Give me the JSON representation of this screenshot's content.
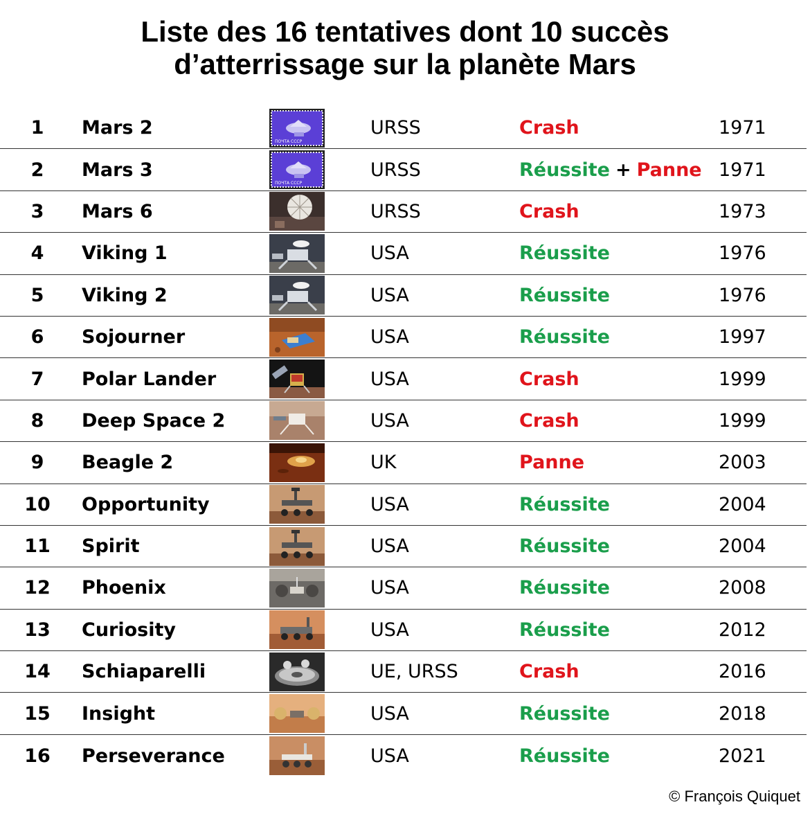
{
  "title_line1": "Liste des 16 tentatives dont 10 succès",
  "title_line2": "d’atterrissage sur la planète Mars",
  "rows": [
    {
      "num": "1",
      "name": "Mars 2",
      "country": "URSS",
      "result": [
        {
          "text": "Crash",
          "status": "fail"
        }
      ],
      "year": "1971",
      "thumb": "stamp"
    },
    {
      "num": "2",
      "name": "Mars 3",
      "country": "URSS",
      "result": [
        {
          "text": "Réussite",
          "status": "ok"
        },
        {
          "text": "+",
          "status": "sep"
        },
        {
          "text": "Panne",
          "status": "fail"
        }
      ],
      "year": "1971",
      "thumb": "stamp"
    },
    {
      "num": "3",
      "name": "Mars 6",
      "country": "URSS",
      "result": [
        {
          "text": "Crash",
          "status": "fail"
        }
      ],
      "year": "1973",
      "thumb": "parachute"
    },
    {
      "num": "4",
      "name": "Viking 1",
      "country": "USA",
      "result": [
        {
          "text": "Réussite",
          "status": "ok"
        }
      ],
      "year": "1976",
      "thumb": "viking"
    },
    {
      "num": "5",
      "name": "Viking 2",
      "country": "USA",
      "result": [
        {
          "text": "Réussite",
          "status": "ok"
        }
      ],
      "year": "1976",
      "thumb": "viking"
    },
    {
      "num": "6",
      "name": "Sojourner",
      "country": "USA",
      "result": [
        {
          "text": "Réussite",
          "status": "ok"
        }
      ],
      "year": "1997",
      "thumb": "sojourner"
    },
    {
      "num": "7",
      "name": "Polar Lander",
      "country": "USA",
      "result": [
        {
          "text": "Crash",
          "status": "fail"
        }
      ],
      "year": "1999",
      "thumb": "polar"
    },
    {
      "num": "8",
      "name": "Deep Space 2",
      "country": "USA",
      "result": [
        {
          "text": "Crash",
          "status": "fail"
        }
      ],
      "year": "1999",
      "thumb": "deepspace"
    },
    {
      "num": "9",
      "name": "Beagle 2",
      "country": "UK",
      "result": [
        {
          "text": "Panne",
          "status": "fail"
        }
      ],
      "year": "2003",
      "thumb": "beagle"
    },
    {
      "num": "10",
      "name": "Opportunity",
      "country": "USA",
      "result": [
        {
          "text": "Réussite",
          "status": "ok"
        }
      ],
      "year": "2004",
      "thumb": "rover"
    },
    {
      "num": "11",
      "name": "Spirit",
      "country": "USA",
      "result": [
        {
          "text": "Réussite",
          "status": "ok"
        }
      ],
      "year": "2004",
      "thumb": "rover"
    },
    {
      "num": "12",
      "name": "Phoenix",
      "country": "USA",
      "result": [
        {
          "text": "Réussite",
          "status": "ok"
        }
      ],
      "year": "2008",
      "thumb": "phoenix"
    },
    {
      "num": "13",
      "name": "Curiosity",
      "country": "USA",
      "result": [
        {
          "text": "Réussite",
          "status": "ok"
        }
      ],
      "year": "2012",
      "thumb": "curiosity"
    },
    {
      "num": "14",
      "name": "Schiaparelli",
      "country": "UE, URSS",
      "result": [
        {
          "text": "Crash",
          "status": "fail"
        }
      ],
      "year": "2016",
      "thumb": "schiaparelli"
    },
    {
      "num": "15",
      "name": "Insight",
      "country": "USA",
      "result": [
        {
          "text": "Réussite",
          "status": "ok"
        }
      ],
      "year": "2018",
      "thumb": "insight"
    },
    {
      "num": "16",
      "name": "Perseverance",
      "country": "USA",
      "result": [
        {
          "text": "Réussite",
          "status": "ok"
        }
      ],
      "year": "2021",
      "thumb": "perseverance"
    }
  ],
  "credit": "© François Quiquet"
}
